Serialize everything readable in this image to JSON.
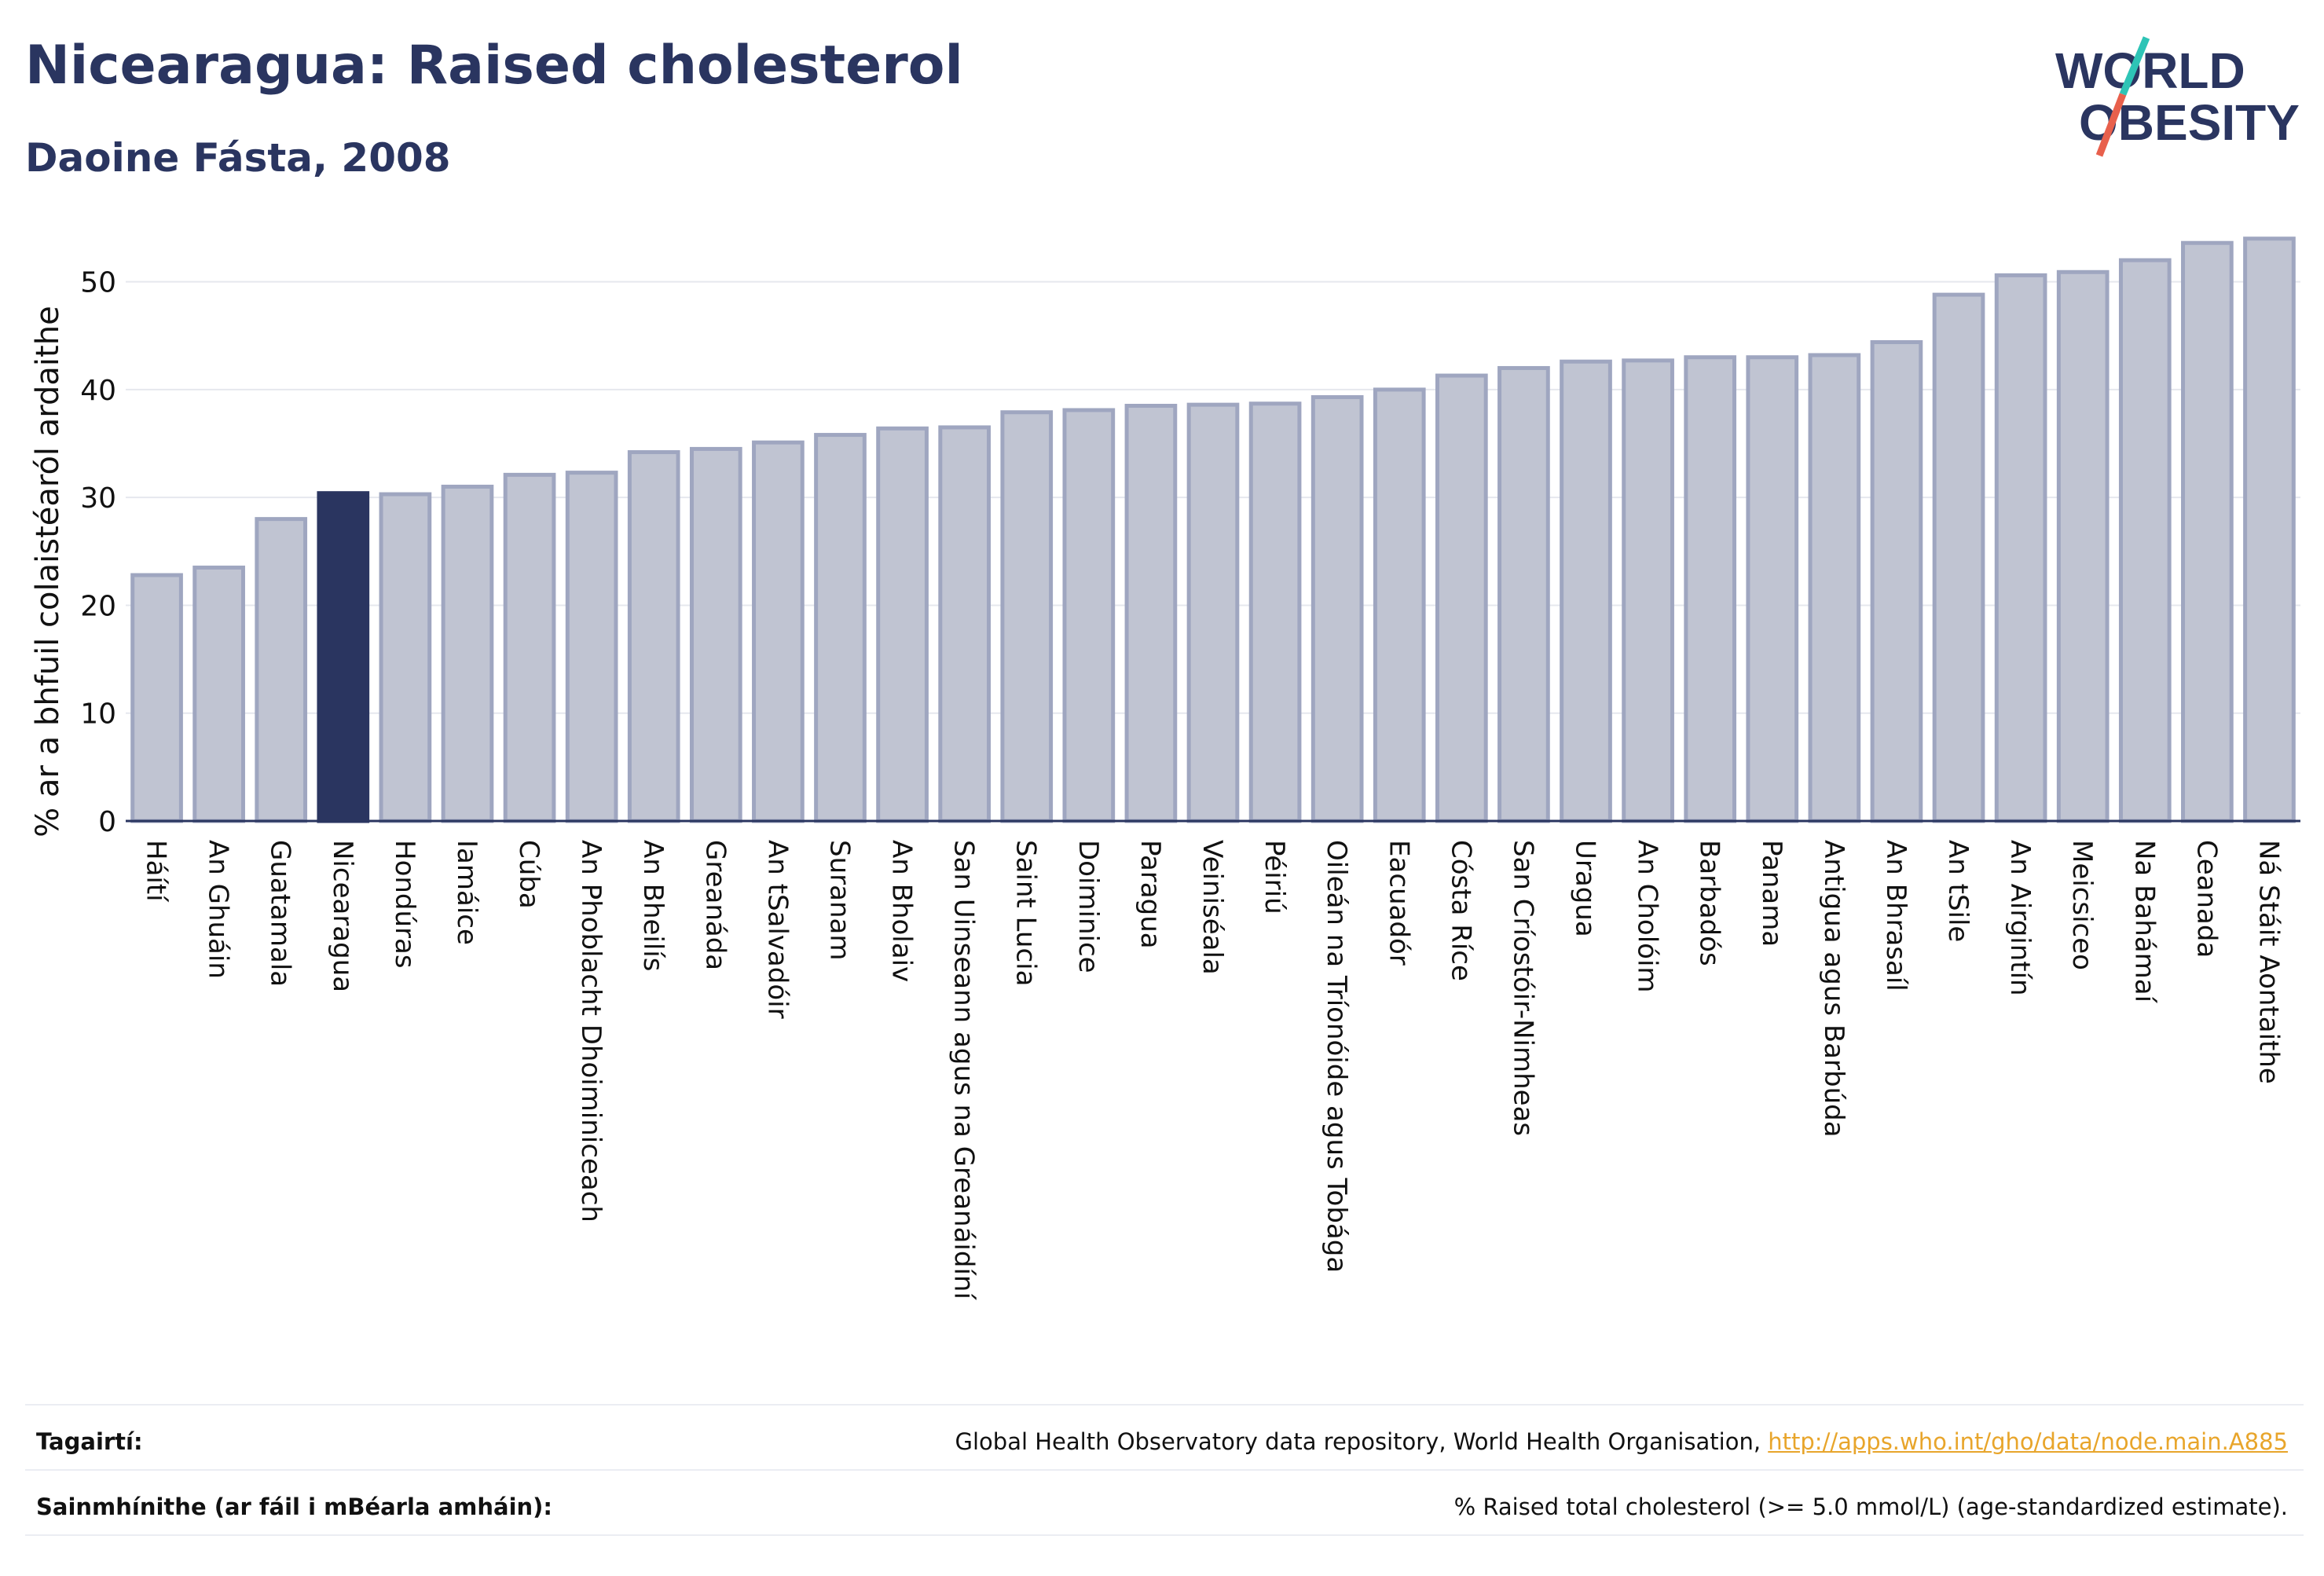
{
  "header": {
    "title": "Nicearagua: Raised cholesterol",
    "subtitle": "Daoine Fásta, 2008"
  },
  "logo": {
    "line1": "WORLD",
    "line2": "OBESITY",
    "slash_colors": [
      "#2ec4b6",
      "#e8604c"
    ]
  },
  "chart_data": {
    "type": "bar",
    "ylabel": "% ar a bhfuil colaistéaról ardaithe",
    "ylim": [
      0,
      55
    ],
    "yticks": [
      0,
      10,
      20,
      30,
      40,
      50
    ],
    "grid": true,
    "highlight": "Nicearagua",
    "colors": {
      "bar": "#c0c4d2",
      "bar_border": "#9fa6c0",
      "highlight": "#2a3560"
    },
    "categories": [
      "Háítí",
      "An Ghuáin",
      "Guatamala",
      "Nicearagua",
      "Hondúras",
      "Iamáice",
      "Cúba",
      "An Phoblacht Dhoiminiceach",
      "An Bheilís",
      "Greanáda",
      "An tSalvadóir",
      "Suranam",
      "An Bholaiv",
      "San Uinseann agus na Greanáidíní",
      "Saint Lucia",
      "Doiminice",
      "Paragua",
      "Veiniséala",
      "Péiriú",
      "Oileán na Tríonóide agus Tobága",
      "Eacuadór",
      "Cósta Ríce",
      "San Críostóir-Nimheas",
      "Uragua",
      "An Cholóim",
      "Barbadós",
      "Panama",
      "Antigua agus Barbúda",
      "An Bhrasaíl",
      "An tSile",
      "An Airgintín",
      "Meicsiceo",
      "Na Bahámaí",
      "Ceanada",
      "Ná Stáit Aontaithe"
    ],
    "values": [
      22.8,
      23.5,
      28.0,
      30.4,
      30.3,
      31.0,
      32.1,
      32.3,
      34.2,
      34.5,
      35.1,
      35.8,
      36.4,
      36.5,
      37.9,
      38.1,
      38.5,
      38.6,
      38.7,
      39.3,
      40.0,
      41.3,
      42.0,
      42.6,
      42.7,
      43.0,
      43.0,
      43.2,
      44.4,
      48.8,
      50.6,
      50.9,
      52.0,
      53.6,
      54.0
    ]
  },
  "footer": {
    "references_label": "Tagairtí:",
    "references_text": "Global Health Observatory data repository, World Health Organisation, ",
    "references_link": "http://apps.who.int/gho/data/node.main.A885",
    "definitions_label": "Sainmhínithe (ar fáil i mBéarla amháin):",
    "definitions_text": "% Raised total cholesterol (>= 5.0 mmol/L) (age-standardized estimate)."
  }
}
